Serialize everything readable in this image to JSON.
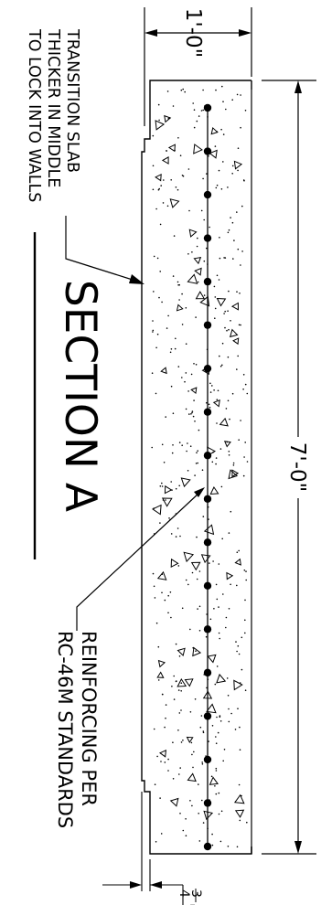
{
  "title": "SECTION A",
  "notes": {
    "transition_slab": [
      "TRANSITION SLAB",
      "THICKER IN MIDDLE",
      "TO LOCK INTO WALLS"
    ],
    "reinforcing": [
      "REINFORCING PER",
      "RC-46M STANDARDS"
    ]
  },
  "dimensions": {
    "width": "1'-0\"",
    "length": "7'-0\"",
    "thickening_whole": "3",
    "thickening_num": "3",
    "thickening_den": "4",
    "thickening_unit": "\""
  },
  "rebar": {
    "count": 18
  },
  "colors": {
    "line": "#000000",
    "background": "#ffffff"
  }
}
